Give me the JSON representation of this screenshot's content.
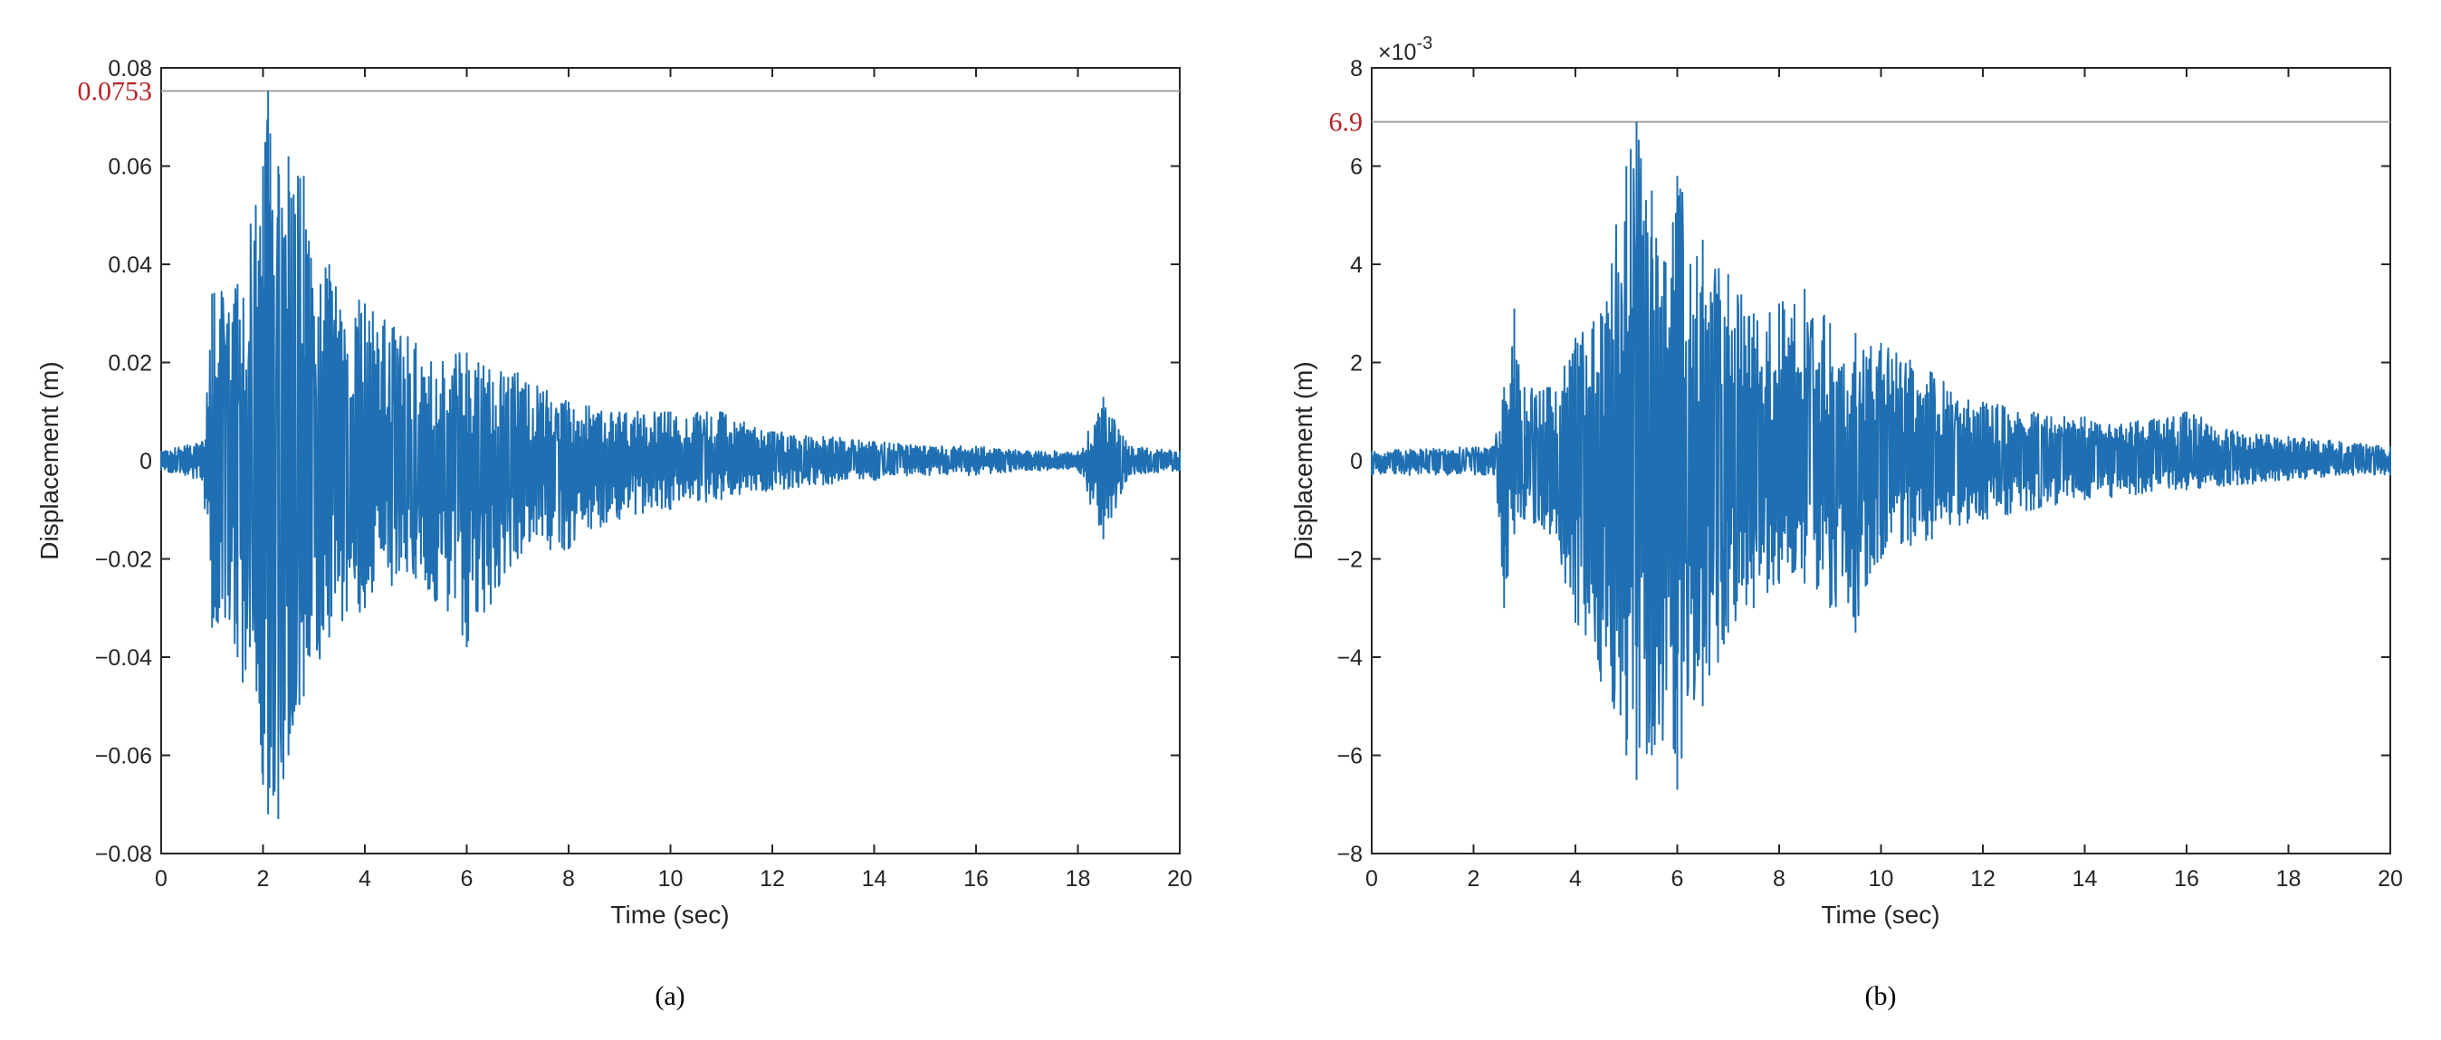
{
  "chart_data": [
    {
      "type": "line",
      "panel_label": "(a)",
      "xlabel": "Time (sec)",
      "ylabel": "Displacement (m)",
      "xlim": [
        0,
        20
      ],
      "ylim": [
        -0.08,
        0.08
      ],
      "xticks": [
        "0",
        "2",
        "4",
        "6",
        "8",
        "10",
        "12",
        "14",
        "16",
        "18",
        "20"
      ],
      "yticks": [
        "0.08",
        "0.06",
        "0.04",
        "0.02",
        "0",
        "−0.02",
        "−0.04",
        "−0.06",
        "−0.08"
      ],
      "reference_line": {
        "value": 0.0753,
        "label": "0.0753",
        "color": "#b3262b"
      },
      "line_color": "#1f6fb2",
      "series_envelope": {
        "x": [
          0,
          0.8,
          1.0,
          1.5,
          2.0,
          2.1,
          2.3,
          2.5,
          2.8,
          3.3,
          4.0,
          5.0,
          6.0,
          7.0,
          8.0,
          9.0,
          10.0,
          11.0,
          12.0,
          13.0,
          14.0,
          15.0,
          16.0,
          17.0,
          18.0,
          18.5,
          19.0,
          20.0
        ],
        "upper": [
          0.002,
          0.004,
          0.034,
          0.036,
          0.06,
          0.0753,
          0.06,
          0.062,
          0.058,
          0.04,
          0.032,
          0.024,
          0.022,
          0.018,
          0.012,
          0.01,
          0.01,
          0.01,
          0.006,
          0.005,
          0.004,
          0.003,
          0.003,
          0.002,
          0.002,
          0.013,
          0.003,
          0.002
        ],
        "lower": [
          -0.002,
          -0.004,
          -0.034,
          -0.04,
          -0.066,
          -0.072,
          -0.073,
          -0.06,
          -0.048,
          -0.036,
          -0.03,
          -0.024,
          -0.038,
          -0.02,
          -0.018,
          -0.012,
          -0.01,
          -0.008,
          -0.006,
          -0.005,
          -0.004,
          -0.003,
          -0.003,
          -0.002,
          -0.002,
          -0.016,
          -0.003,
          -0.002
        ]
      }
    },
    {
      "type": "line",
      "panel_label": "(b)",
      "xlabel": "Time (sec)",
      "ylabel": "Displacement (m)",
      "xlim": [
        0,
        20
      ],
      "ylim": [
        -8,
        8
      ],
      "y_multiplier": "×10",
      "y_exponent": "-3",
      "xticks": [
        "0",
        "2",
        "4",
        "6",
        "8",
        "10",
        "12",
        "14",
        "16",
        "18",
        "20"
      ],
      "yticks": [
        "8",
        "6",
        "4",
        "2",
        "0",
        "−2",
        "−4",
        "−6",
        "−8"
      ],
      "reference_line": {
        "value": 6.9,
        "label": "6.9",
        "color": "#b3262b"
      },
      "line_color": "#1f6fb2",
      "series_envelope": {
        "x": [
          0,
          2.4,
          2.6,
          2.8,
          3.0,
          3.5,
          4.0,
          4.5,
          5.0,
          5.2,
          5.5,
          6.0,
          6.5,
          7.0,
          7.5,
          8.0,
          8.5,
          9.0,
          9.5,
          10.0,
          11.0,
          12.0,
          13.0,
          14.0,
          15.0,
          16.0,
          17.0,
          18.0,
          19.0,
          20.0
        ],
        "upper": [
          0.2,
          0.3,
          1.5,
          3.1,
          1.5,
          1.5,
          2.5,
          3.0,
          6.0,
          6.9,
          5.5,
          5.8,
          4.5,
          3.8,
          3.0,
          3.2,
          3.5,
          2.8,
          2.6,
          2.4,
          1.8,
          1.2,
          1.0,
          0.9,
          0.8,
          1.0,
          0.6,
          0.5,
          0.4,
          0.3
        ],
        "lower": [
          -0.3,
          -0.3,
          -3.0,
          -1.5,
          -1.2,
          -1.5,
          -3.3,
          -4.5,
          -6.0,
          -6.5,
          -6.0,
          -6.7,
          -5.0,
          -3.5,
          -3.0,
          -2.5,
          -2.5,
          -3.0,
          -3.5,
          -2.0,
          -1.6,
          -1.2,
          -1.0,
          -0.8,
          -0.7,
          -0.6,
          -0.5,
          -0.4,
          -0.3,
          -0.3
        ]
      }
    }
  ]
}
